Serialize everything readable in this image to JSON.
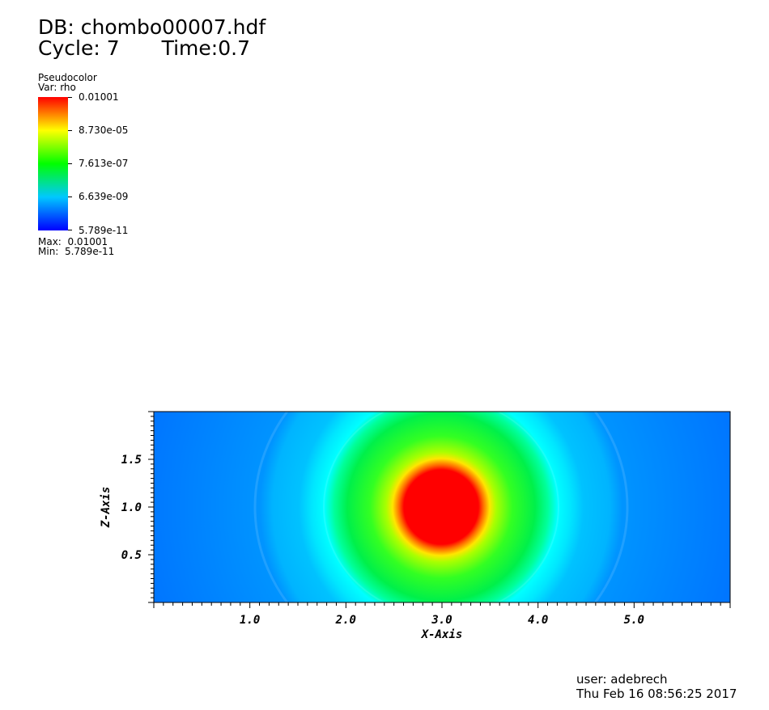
{
  "header": {
    "db": "DB: chombo00007.hdf",
    "cycle": "Cycle: 7",
    "time": "Time:0.7"
  },
  "legend": {
    "plot_type": "Pseudocolor",
    "var": "Var: rho",
    "ticks": [
      "0.01001",
      "8.730e-05",
      "7.613e-07",
      "6.639e-09",
      "5.789e-11"
    ],
    "max_label": "Max:  0.01001",
    "min_label": "Min:  5.789e-11",
    "colors": [
      "#ff0000",
      "#ffff00",
      "#00ff00",
      "#00c8ff",
      "#0000ff"
    ]
  },
  "footer": {
    "user": "user: adebrech",
    "date": "Thu Feb 16 08:56:25 2017"
  },
  "chart_data": {
    "type": "heatmap",
    "title": "",
    "xlabel": "X-Axis",
    "ylabel": "Z-Axis",
    "xlim": [
      0.0,
      6.0
    ],
    "ylim": [
      0.0,
      2.0
    ],
    "x_ticks": [
      1.0,
      2.0,
      3.0,
      4.0,
      5.0
    ],
    "x_tick_labels": [
      "1.0",
      "2.0",
      "3.0",
      "4.0",
      "5.0"
    ],
    "y_ticks": [
      0.5,
      1.0,
      1.5
    ],
    "y_tick_labels": [
      "0.5",
      "1.0",
      "1.5"
    ],
    "variable": "rho",
    "scale": "log",
    "value_range": [
      5.789e-11,
      0.01001
    ],
    "feature": {
      "shape": "circular high-density core with concentric shells",
      "center": [
        3.0,
        1.0
      ],
      "core_radius": 0.4,
      "core_value": 0.01001,
      "shells": [
        {
          "radius": 0.6,
          "level": "yellow-green"
        },
        {
          "radius": 1.1,
          "level": "green"
        },
        {
          "radius": 1.35,
          "level": "cyan"
        },
        {
          "radius": 2.0,
          "level": "light blue"
        }
      ],
      "background_value": 5.789e-11
    }
  }
}
